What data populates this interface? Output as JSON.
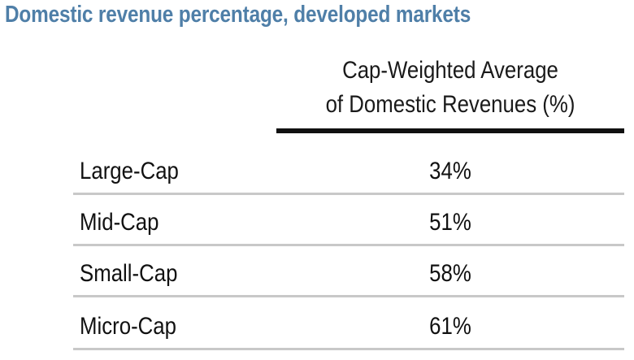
{
  "chart_data": {
    "type": "table",
    "title": "Domestic revenue percentage, developed markets",
    "column_header": [
      "Cap-Weighted Average",
      "of Domestic Revenues (%)"
    ],
    "rows": [
      {
        "label": "Large-Cap",
        "value": "34%"
      },
      {
        "label": "Mid-Cap",
        "value": "51%"
      },
      {
        "label": "Small-Cap",
        "value": "58%"
      },
      {
        "label": "Micro-Cap",
        "value": "61%"
      }
    ],
    "colors": {
      "title": "#4f7fa8",
      "header_rule": "#111111",
      "row_rule": "#c8c8c8"
    }
  }
}
